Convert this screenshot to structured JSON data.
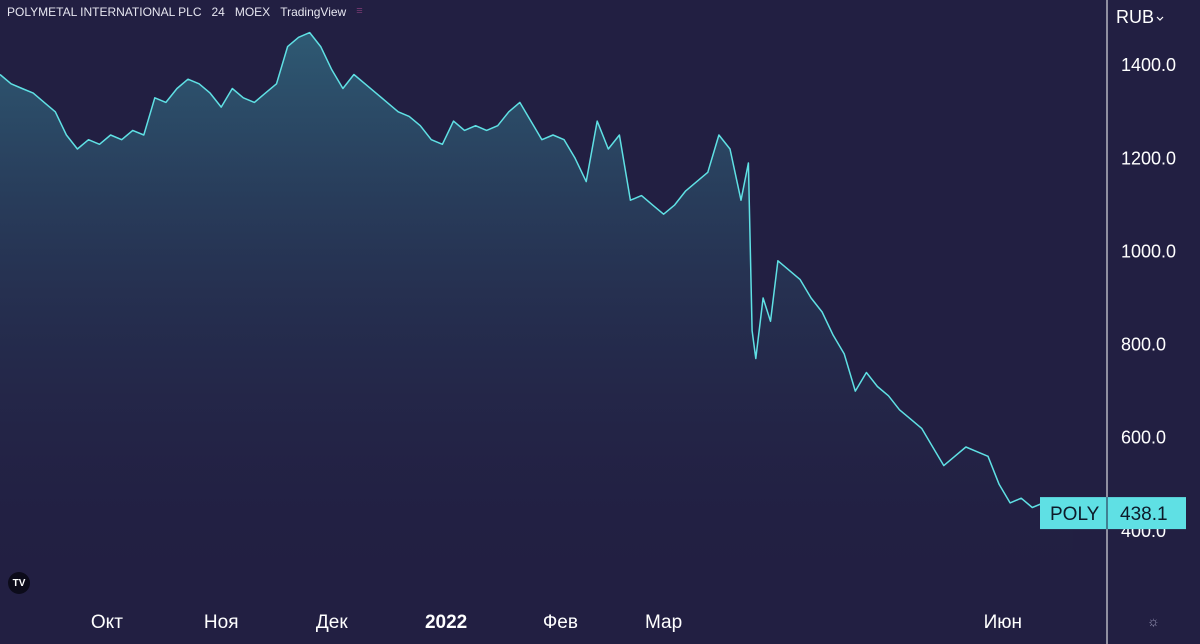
{
  "header": {
    "symbol_name": "POLYMETAL INTERNATIONAL PLC",
    "interval": "24",
    "exchange": "MOEX",
    "source": "TradingView"
  },
  "icons": {
    "logo": "tradingview-logo-icon",
    "settings": "gear-icon",
    "menu": "menu-icon"
  },
  "colors": {
    "background": "#221f42",
    "line": "#5fe0e4",
    "label_bg": "#5fe0e4",
    "text": "#ffffff"
  },
  "chart_data": {
    "type": "area",
    "ylabel": "RUB",
    "ylim": [
      260,
      1540
    ],
    "yticks": [
      400,
      600,
      800,
      1000,
      1200,
      1400
    ],
    "ytick_labels": [
      "400.0",
      "600.0",
      "800.0",
      "1000.0",
      "1200.0",
      "1400.0"
    ],
    "xticks": [
      {
        "label": "Окт",
        "x": "2021-10-01",
        "bold": false
      },
      {
        "label": "Ноя",
        "x": "2021-11-01",
        "bold": false
      },
      {
        "label": "Дек",
        "x": "2021-12-01",
        "bold": false
      },
      {
        "label": "2022",
        "x": "2022-01-01",
        "bold": true
      },
      {
        "label": "Фев",
        "x": "2022-02-01",
        "bold": false
      },
      {
        "label": "Мар",
        "x": "2022-03-01",
        "bold": false
      },
      {
        "label": "Июн",
        "x": "2022-06-01",
        "bold": false
      }
    ],
    "xlim": [
      "2021-09-02",
      "2022-06-29"
    ],
    "series": [
      {
        "name": "POLY",
        "points": [
          [
            "2021-09-02",
            1380
          ],
          [
            "2021-09-05",
            1360
          ],
          [
            "2021-09-08",
            1350
          ],
          [
            "2021-09-11",
            1340
          ],
          [
            "2021-09-14",
            1320
          ],
          [
            "2021-09-17",
            1300
          ],
          [
            "2021-09-20",
            1250
          ],
          [
            "2021-09-23",
            1220
          ],
          [
            "2021-09-26",
            1240
          ],
          [
            "2021-09-29",
            1230
          ],
          [
            "2021-10-02",
            1250
          ],
          [
            "2021-10-05",
            1240
          ],
          [
            "2021-10-08",
            1260
          ],
          [
            "2021-10-11",
            1250
          ],
          [
            "2021-10-14",
            1330
          ],
          [
            "2021-10-17",
            1320
          ],
          [
            "2021-10-20",
            1350
          ],
          [
            "2021-10-23",
            1370
          ],
          [
            "2021-10-26",
            1360
          ],
          [
            "2021-10-29",
            1340
          ],
          [
            "2021-11-01",
            1310
          ],
          [
            "2021-11-04",
            1350
          ],
          [
            "2021-11-07",
            1330
          ],
          [
            "2021-11-10",
            1320
          ],
          [
            "2021-11-13",
            1340
          ],
          [
            "2021-11-16",
            1360
          ],
          [
            "2021-11-19",
            1440
          ],
          [
            "2021-11-22",
            1460
          ],
          [
            "2021-11-25",
            1470
          ],
          [
            "2021-11-28",
            1440
          ],
          [
            "2021-12-01",
            1390
          ],
          [
            "2021-12-04",
            1350
          ],
          [
            "2021-12-07",
            1380
          ],
          [
            "2021-12-10",
            1360
          ],
          [
            "2021-12-13",
            1340
          ],
          [
            "2021-12-16",
            1320
          ],
          [
            "2021-12-19",
            1300
          ],
          [
            "2021-12-22",
            1290
          ],
          [
            "2021-12-25",
            1270
          ],
          [
            "2021-12-28",
            1240
          ],
          [
            "2021-12-31",
            1230
          ],
          [
            "2022-01-03",
            1280
          ],
          [
            "2022-01-06",
            1260
          ],
          [
            "2022-01-09",
            1270
          ],
          [
            "2022-01-12",
            1260
          ],
          [
            "2022-01-15",
            1270
          ],
          [
            "2022-01-18",
            1300
          ],
          [
            "2022-01-21",
            1320
          ],
          [
            "2022-01-24",
            1280
          ],
          [
            "2022-01-27",
            1240
          ],
          [
            "2022-01-30",
            1250
          ],
          [
            "2022-02-02",
            1240
          ],
          [
            "2022-02-05",
            1200
          ],
          [
            "2022-02-08",
            1150
          ],
          [
            "2022-02-11",
            1280
          ],
          [
            "2022-02-14",
            1220
          ],
          [
            "2022-02-17",
            1250
          ],
          [
            "2022-02-20",
            1110
          ],
          [
            "2022-02-23",
            1120
          ],
          [
            "2022-02-26",
            1100
          ],
          [
            "2022-03-01",
            1080
          ],
          [
            "2022-03-04",
            1100
          ],
          [
            "2022-03-07",
            1130
          ],
          [
            "2022-03-10",
            1150
          ],
          [
            "2022-03-13",
            1170
          ],
          [
            "2022-03-16",
            1250
          ],
          [
            "2022-03-19",
            1220
          ],
          [
            "2022-03-22",
            1110
          ],
          [
            "2022-03-24",
            1190
          ],
          [
            "2022-03-25",
            830
          ],
          [
            "2022-03-26",
            770
          ],
          [
            "2022-03-28",
            900
          ],
          [
            "2022-03-30",
            850
          ],
          [
            "2022-04-01",
            980
          ],
          [
            "2022-04-04",
            960
          ],
          [
            "2022-04-07",
            940
          ],
          [
            "2022-04-10",
            900
          ],
          [
            "2022-04-13",
            870
          ],
          [
            "2022-04-16",
            820
          ],
          [
            "2022-04-19",
            780
          ],
          [
            "2022-04-22",
            700
          ],
          [
            "2022-04-25",
            740
          ],
          [
            "2022-04-28",
            710
          ],
          [
            "2022-05-01",
            690
          ],
          [
            "2022-05-04",
            660
          ],
          [
            "2022-05-07",
            640
          ],
          [
            "2022-05-10",
            620
          ],
          [
            "2022-05-13",
            580
          ],
          [
            "2022-05-16",
            540
          ],
          [
            "2022-05-19",
            560
          ],
          [
            "2022-05-22",
            580
          ],
          [
            "2022-05-25",
            570
          ],
          [
            "2022-05-28",
            560
          ],
          [
            "2022-05-31",
            500
          ],
          [
            "2022-06-03",
            460
          ],
          [
            "2022-06-06",
            470
          ],
          [
            "2022-06-09",
            450
          ],
          [
            "2022-06-12",
            460
          ],
          [
            "2022-06-15",
            455
          ],
          [
            "2022-06-18",
            440
          ],
          [
            "2022-06-20",
            438.1
          ]
        ]
      }
    ],
    "last_price": {
      "symbol": "POLY",
      "value": "438.1"
    }
  }
}
